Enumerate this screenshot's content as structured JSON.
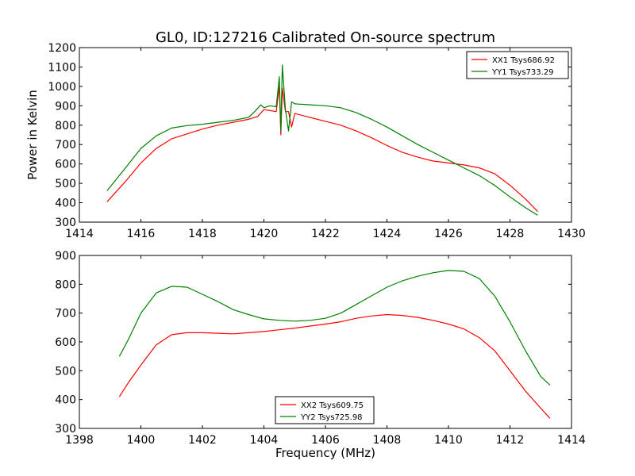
{
  "figure": {
    "title": "GL0, ID:127216 Calibrated On-source spectrum"
  },
  "chart_data": [
    {
      "type": "line",
      "title": "GL0, ID:127216 Calibrated On-source spectrum",
      "xlabel": "",
      "ylabel": "Power in Kelvin",
      "xlim": [
        1414,
        1430
      ],
      "ylim": [
        300,
        1200
      ],
      "xticks": [
        "1414",
        "1416",
        "1418",
        "1420",
        "1422",
        "1424",
        "1426",
        "1428",
        "1430"
      ],
      "yticks": [
        "300",
        "400",
        "500",
        "600",
        "700",
        "800",
        "900",
        "1000",
        "1100",
        "1200"
      ],
      "legend_position": "top-right",
      "grid": false,
      "series": [
        {
          "name": "XX1 Tsys686.92",
          "color": "#ff0000",
          "x": [
            1414.9,
            1415.5,
            1416.0,
            1416.5,
            1417.0,
            1417.5,
            1418.0,
            1418.5,
            1419.0,
            1419.5,
            1419.8,
            1420.0,
            1420.2,
            1420.4,
            1420.5,
            1420.55,
            1420.6,
            1420.7,
            1420.8,
            1420.9,
            1421.0,
            1421.5,
            1422.0,
            1422.5,
            1423.0,
            1423.5,
            1424.0,
            1424.5,
            1425.0,
            1425.5,
            1426.0,
            1426.5,
            1427.0,
            1427.5,
            1428.0,
            1428.5,
            1428.9
          ],
          "y": [
            405,
            510,
            605,
            680,
            730,
            755,
            780,
            800,
            815,
            830,
            845,
            880,
            875,
            870,
            1000,
            750,
            990,
            870,
            870,
            790,
            860,
            840,
            820,
            800,
            770,
            735,
            695,
            660,
            635,
            615,
            605,
            595,
            580,
            550,
            490,
            420,
            355
          ]
        },
        {
          "name": "YY1 Tsys733.29",
          "color": "#008000",
          "x": [
            1414.9,
            1415.5,
            1416.0,
            1416.5,
            1417.0,
            1417.5,
            1418.0,
            1418.5,
            1419.0,
            1419.5,
            1419.7,
            1419.9,
            1420.0,
            1420.2,
            1420.4,
            1420.5,
            1420.55,
            1420.6,
            1420.7,
            1420.8,
            1420.9,
            1421.0,
            1421.5,
            1422.0,
            1422.5,
            1423.0,
            1423.5,
            1424.0,
            1424.5,
            1425.0,
            1425.5,
            1426.0,
            1426.5,
            1427.0,
            1427.5,
            1428.0,
            1428.5,
            1428.9
          ],
          "y": [
            462,
            580,
            680,
            745,
            785,
            798,
            805,
            815,
            825,
            840,
            870,
            905,
            890,
            900,
            895,
            1050,
            770,
            1110,
            880,
            770,
            920,
            910,
            905,
            900,
            890,
            865,
            830,
            790,
            745,
            700,
            660,
            620,
            580,
            540,
            490,
            430,
            375,
            335
          ]
        }
      ]
    },
    {
      "type": "line",
      "title": "",
      "xlabel": "Frequency (MHz)",
      "ylabel": "",
      "xlim": [
        1398,
        1414
      ],
      "ylim": [
        300,
        900
      ],
      "xticks": [
        "1398",
        "1400",
        "1402",
        "1404",
        "1406",
        "1408",
        "1410",
        "1412",
        "1414"
      ],
      "yticks": [
        "300",
        "400",
        "500",
        "600",
        "700",
        "800",
        "900"
      ],
      "legend_position": "bottom-center",
      "grid": false,
      "series": [
        {
          "name": "XX2 Tsys609.75",
          "color": "#ff0000",
          "x": [
            1399.3,
            1399.6,
            1400.0,
            1400.5,
            1401.0,
            1401.5,
            1402.0,
            1402.5,
            1403.0,
            1403.5,
            1404.0,
            1404.5,
            1405.0,
            1405.5,
            1406.0,
            1406.5,
            1407.0,
            1407.5,
            1408.0,
            1408.5,
            1409.0,
            1409.5,
            1410.0,
            1410.5,
            1411.0,
            1411.5,
            1412.0,
            1412.5,
            1413.0,
            1413.3
          ],
          "y": [
            410,
            460,
            520,
            590,
            625,
            632,
            632,
            630,
            628,
            632,
            636,
            642,
            648,
            655,
            662,
            670,
            682,
            690,
            695,
            692,
            685,
            675,
            662,
            645,
            615,
            570,
            500,
            430,
            370,
            335
          ]
        },
        {
          "name": "YY2 Tsys725.98",
          "color": "#008000",
          "x": [
            1399.3,
            1399.6,
            1400.0,
            1400.5,
            1401.0,
            1401.5,
            1402.0,
            1402.5,
            1403.0,
            1403.5,
            1404.0,
            1404.5,
            1405.0,
            1405.5,
            1406.0,
            1406.5,
            1407.0,
            1407.5,
            1408.0,
            1408.5,
            1409.0,
            1409.5,
            1410.0,
            1410.5,
            1411.0,
            1411.5,
            1412.0,
            1412.5,
            1413.0,
            1413.3
          ],
          "y": [
            550,
            610,
            700,
            770,
            793,
            790,
            765,
            740,
            712,
            695,
            680,
            675,
            672,
            675,
            682,
            700,
            730,
            760,
            790,
            812,
            828,
            840,
            848,
            845,
            820,
            760,
            670,
            570,
            480,
            450
          ]
        }
      ]
    }
  ]
}
